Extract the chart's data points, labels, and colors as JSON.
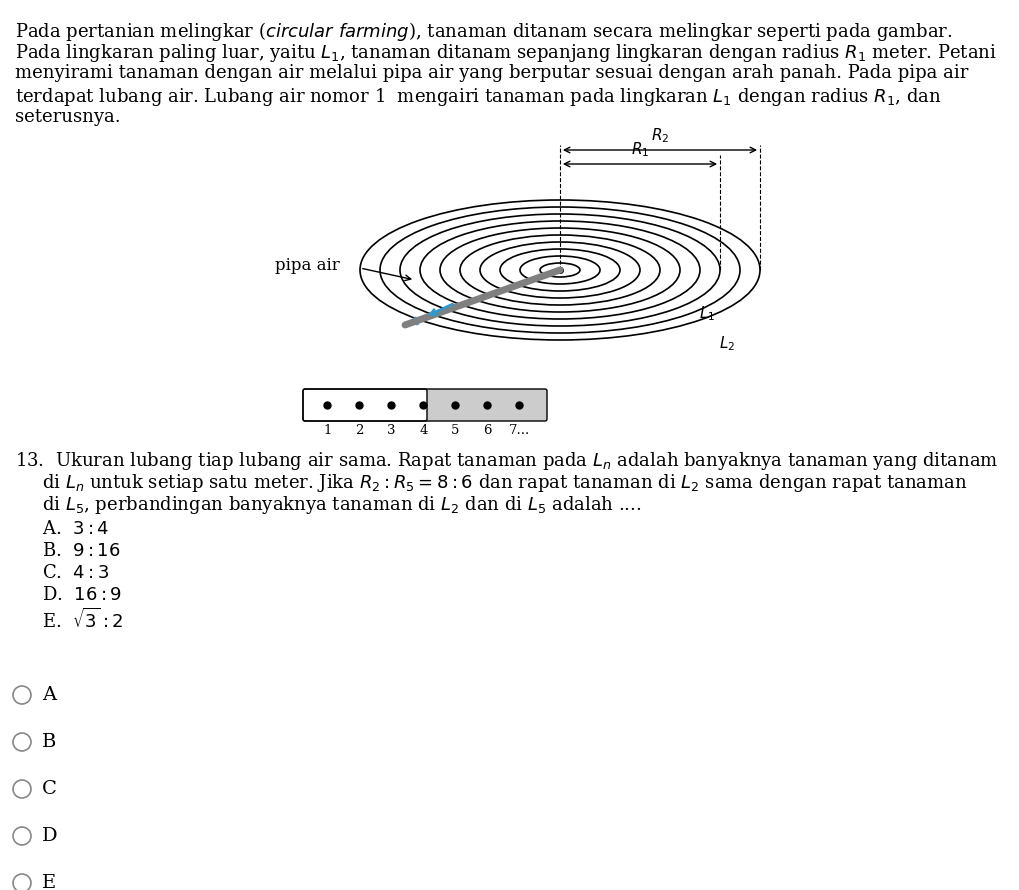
{
  "bg_color": "#ffffff",
  "text_color": "#000000",
  "paragraph": "Pada pertanian melingkar (‪circular farming‬), tanaman ditanam secara melingkar seperti pada gambar. Pada lingkaran paling luar, yaitu $L_1$, tanaman ditanam sepanjang lingkaran dengan radius $R_1$ meter. Petani menyirami tanaman dengan air melalui pipa air yang berputar sesuai dengan arah panah. Pada pipa air terdapat lubang air. Lubang air nomor 1  mengairi tanaman pada lingkaran $L_1$ dengan radius $R_1$, dan seterusnya.",
  "question_num": "13.",
  "question_text": " Ukuran lubang tiap lubang air sama. Rapat tanaman pada $L_n$ adalah banyaknya tanaman yang ditanam di $L_n$ untuk setiap satu meter. Jika $R_2 : R_5 = 8 : 6$ dan rapat tanaman di $L_2$ sama dengan rapat tanaman di $L_5$, perbandingan banyaknya tanaman di $L_2$ dan di $L_5$ adalah ....",
  "options": [
    "A.  $3:4$",
    "B.  $9:16$",
    "C.  $4:3$",
    "D.  $16:9$",
    "E.  $\\sqrt{3}:2$"
  ],
  "radio_labels": [
    "A",
    "B",
    "C",
    "D",
    "E"
  ],
  "num_ellipses": 10,
  "pipe_label": "pipa air",
  "R2_label": "$R_2$",
  "R1_label": "$R_1$",
  "L1_label": "$L_1$",
  "L2_label": "$L_2$",
  "hole_count": 7,
  "hole_numbers": [
    "1",
    "2",
    "3",
    "4",
    "5",
    "6",
    "7..."
  ]
}
